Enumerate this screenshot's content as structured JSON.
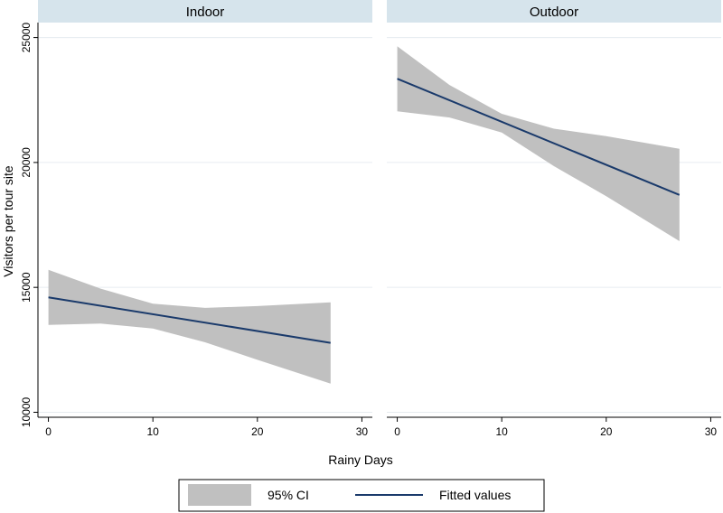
{
  "chart_data": {
    "type": "line",
    "panels": [
      {
        "name": "Indoor",
        "fitted": {
          "x": [
            0,
            27
          ],
          "y": [
            14600,
            12780
          ]
        },
        "ci": {
          "x": [
            0,
            5,
            10,
            15,
            20,
            27
          ],
          "upper": [
            15700,
            14950,
            14350,
            14180,
            14250,
            14400
          ],
          "lower": [
            13500,
            13550,
            13350,
            12800,
            12100,
            11150
          ]
        }
      },
      {
        "name": "Outdoor",
        "fitted": {
          "x": [
            0,
            27
          ],
          "y": [
            23350,
            18700
          ]
        },
        "ci": {
          "x": [
            0,
            5,
            10,
            15,
            20,
            27
          ],
          "upper": [
            24650,
            23100,
            21950,
            21350,
            21050,
            20550
          ],
          "lower": [
            22050,
            21800,
            21200,
            19850,
            18650,
            16850
          ]
        }
      }
    ],
    "xlabel": "Rainy Days",
    "ylabel": "Visitors per tour site",
    "xlim": [
      -1,
      31
    ],
    "ylim": [
      9800,
      25600
    ],
    "xticks": [
      0,
      10,
      20,
      30
    ],
    "yticks": [
      10000,
      15000,
      20000,
      25000
    ],
    "grid": true,
    "legend": [
      {
        "label": "95% CI",
        "kind": "band"
      },
      {
        "label": "Fitted values",
        "kind": "line"
      }
    ],
    "legend_position": "bottom",
    "colors": {
      "ci_fill": "#c0c0c0",
      "line": "#1a3a6b",
      "header_bg": "#d6e4ec",
      "grid": "#e6ecf0",
      "axis": "#000000"
    }
  }
}
